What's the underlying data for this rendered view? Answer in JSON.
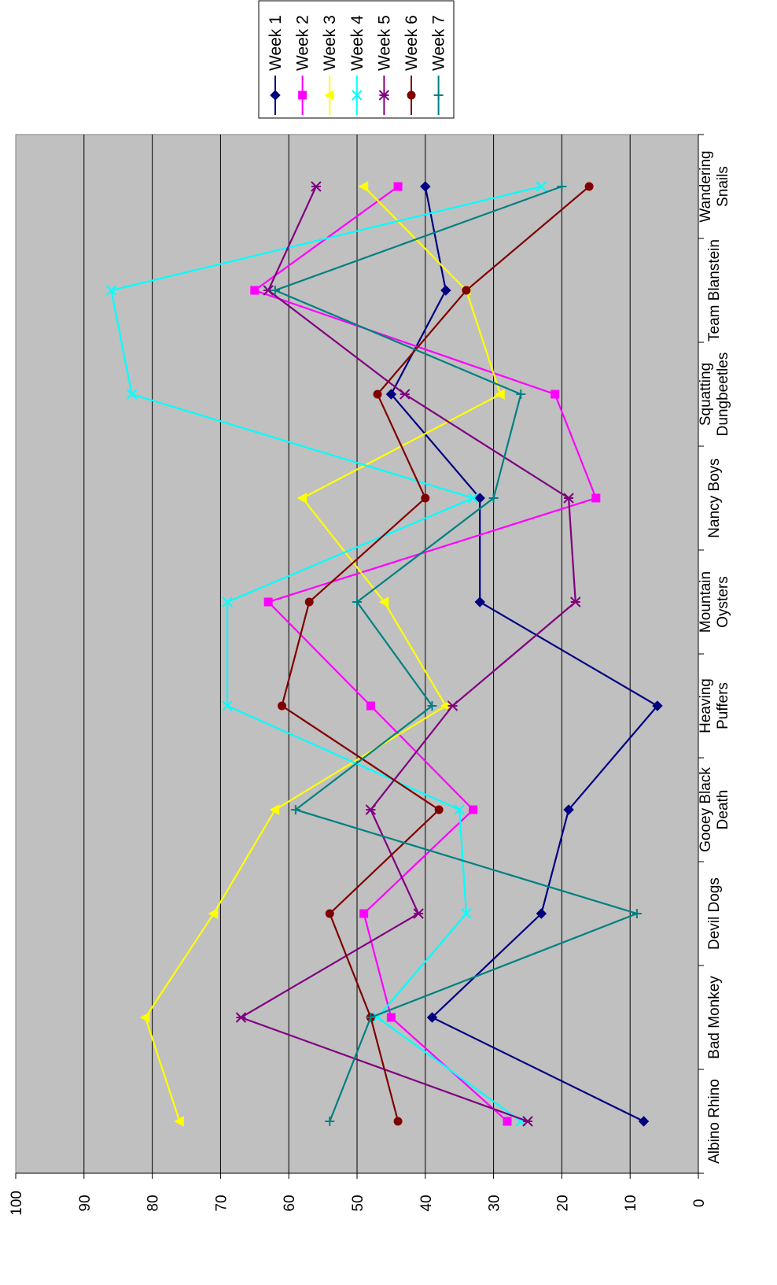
{
  "chart_data": {
    "type": "line",
    "orientation": "rotated-90-clockwise",
    "categories": [
      "Albino Rhino",
      "Bad Monkey",
      "Devil Dogs",
      "Gooey Black Death",
      "Heaving Puffers",
      "Mountain Oysters",
      "Nancy Boys",
      "Squatting Dungbeetles",
      "Team Blanstein",
      "Wandering Snails"
    ],
    "category_lines": [
      [
        "Albino Rhino"
      ],
      [
        "Bad Monkey"
      ],
      [
        "Devil Dogs"
      ],
      [
        "Gooey Black",
        "Death"
      ],
      [
        "Heaving",
        "Puffers"
      ],
      [
        "Mountain",
        "Oysters"
      ],
      [
        "Nancy Boys"
      ],
      [
        "Squatting",
        "Dungbeetles"
      ],
      [
        "Team Blanstein"
      ],
      [
        "Wandering",
        "Snails"
      ]
    ],
    "ylim": [
      0,
      100
    ],
    "yticks": [
      "0",
      "10",
      "20",
      "30",
      "40",
      "50",
      "60",
      "70",
      "80",
      "90",
      "100"
    ],
    "grid": true,
    "legend_position": "top-right",
    "series": [
      {
        "name": "Week 1",
        "color": "#000080",
        "marker": "diamond",
        "values": [
          8,
          39,
          23,
          19,
          6,
          32,
          32,
          45,
          37,
          40
        ]
      },
      {
        "name": "Week 2",
        "color": "#ff00ff",
        "marker": "square",
        "values": [
          28,
          45,
          49,
          33,
          48,
          63,
          15,
          21,
          65,
          44
        ]
      },
      {
        "name": "Week 3",
        "color": "#ffff00",
        "marker": "triangle",
        "values": [
          76,
          81,
          71,
          62,
          37,
          46,
          58,
          29,
          34,
          49
        ]
      },
      {
        "name": "Week 4",
        "color": "#00ffff",
        "marker": "x",
        "values": [
          26,
          47,
          34,
          35,
          69,
          69,
          33,
          83,
          86,
          23
        ]
      },
      {
        "name": "Week 5",
        "color": "#800080",
        "marker": "star",
        "values": [
          25,
          67,
          41,
          48,
          36,
          18,
          19,
          43,
          63,
          56
        ]
      },
      {
        "name": "Week 6",
        "color": "#800000",
        "marker": "circle",
        "values": [
          44,
          48,
          54,
          38,
          61,
          57,
          40,
          47,
          34,
          16
        ]
      },
      {
        "name": "Week 7",
        "color": "#008080",
        "marker": "plus",
        "values": [
          54,
          48,
          9,
          59,
          39,
          50,
          30,
          26,
          62,
          20
        ]
      }
    ]
  }
}
